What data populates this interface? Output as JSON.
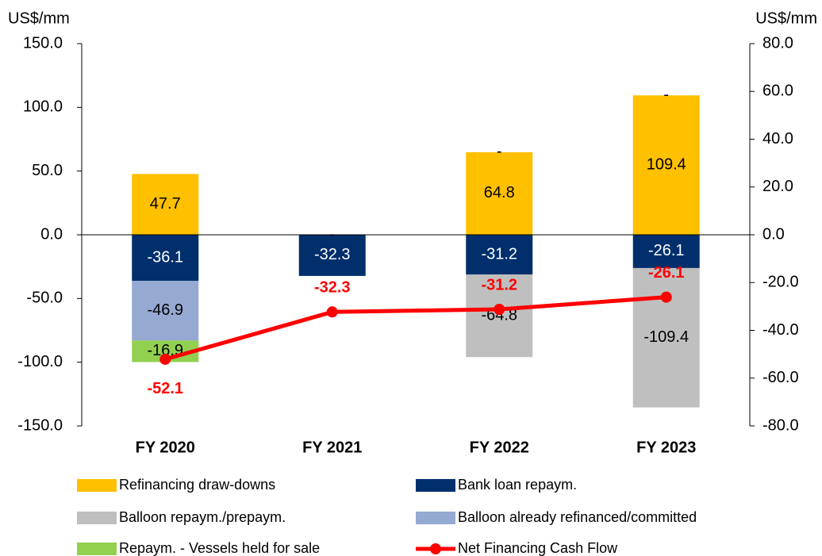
{
  "chart_data": {
    "type": "bar",
    "y_label": "US$/mm",
    "y2_label": "US$/mm",
    "categories": [
      "FY 2020",
      "FY 2021",
      "FY 2022",
      "FY 2023"
    ],
    "series": [
      {
        "name": "Refinancing draw-downs",
        "color": "#FFC000",
        "values": [
          47.7,
          null,
          64.8,
          109.4
        ]
      },
      {
        "name": "Bank loan repaym.",
        "color": "#002F6C",
        "label_color": "#ffffff",
        "values": [
          -36.1,
          -32.3,
          -31.2,
          -26.1
        ]
      },
      {
        "name": "Balloon repaym./prepaym.",
        "color": "#BFBFBF",
        "values": [
          null,
          null,
          -64.8,
          -109.4
        ]
      },
      {
        "name": "Balloon already refinanced/committed",
        "color": "#95A9D2",
        "values": [
          -46.9,
          null,
          null,
          null
        ]
      },
      {
        "name": "Repaym. - Vessels held for sale",
        "color": "#92D050",
        "values": [
          -16.9,
          0,
          0,
          0
        ],
        "value_labels": [
          "-16.9",
          "-",
          "-",
          "-"
        ]
      },
      {
        "name": "Net Financing Cash Flow",
        "type": "line",
        "axis": "y2",
        "color": "#FF0000",
        "values": [
          -52.1,
          -32.3,
          -31.2,
          -26.1
        ]
      }
    ],
    "ylim": [
      -150,
      150
    ],
    "yticks": [
      {
        "value": -150,
        "label": "-150.0"
      },
      {
        "value": -100,
        "label": "-100.0"
      },
      {
        "value": -50,
        "label": "-50.0"
      },
      {
        "value": 0,
        "label": "0.0"
      },
      {
        "value": 50,
        "label": "50.0"
      },
      {
        "value": 100,
        "label": "100.0"
      },
      {
        "value": 150,
        "label": "150.0"
      }
    ],
    "y2lim": [
      -80,
      80
    ],
    "y2ticks": [
      {
        "value": -80,
        "label": "-80.0"
      },
      {
        "value": -60,
        "label": "-60.0"
      },
      {
        "value": -40,
        "label": "-40.0"
      },
      {
        "value": -20,
        "label": "-20.0"
      },
      {
        "value": 0,
        "label": "0.0"
      },
      {
        "value": 20,
        "label": "20.0"
      },
      {
        "value": 40,
        "label": "40.0"
      },
      {
        "value": 60,
        "label": "60.0"
      },
      {
        "value": 80,
        "label": "80.0"
      }
    ],
    "legend": "bottom"
  }
}
